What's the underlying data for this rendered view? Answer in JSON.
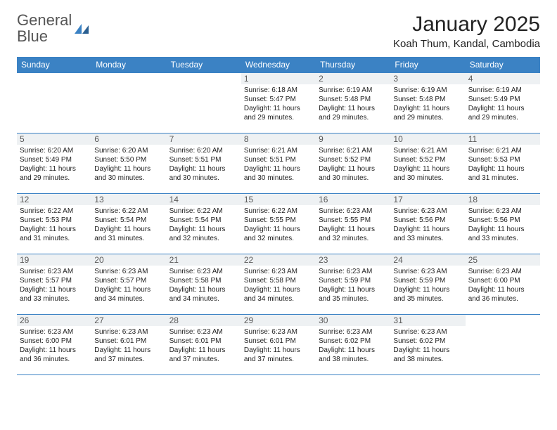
{
  "brand": {
    "part1": "General",
    "part2": "Blue"
  },
  "title": "January 2025",
  "location": "Koah Thum, Kandal, Cambodia",
  "header_bg": "#3b82c4",
  "header_fg": "#ffffff",
  "border_color": "#3b82c4",
  "daynum_bg": "#eef1f3",
  "day_headers": [
    "Sunday",
    "Monday",
    "Tuesday",
    "Wednesday",
    "Thursday",
    "Friday",
    "Saturday"
  ],
  "weeks": [
    [
      {
        "n": "",
        "sr": "",
        "ss": "",
        "d1": "",
        "d2": ""
      },
      {
        "n": "",
        "sr": "",
        "ss": "",
        "d1": "",
        "d2": ""
      },
      {
        "n": "",
        "sr": "",
        "ss": "",
        "d1": "",
        "d2": ""
      },
      {
        "n": "1",
        "sr": "Sunrise: 6:18 AM",
        "ss": "Sunset: 5:47 PM",
        "d1": "Daylight: 11 hours",
        "d2": "and 29 minutes."
      },
      {
        "n": "2",
        "sr": "Sunrise: 6:19 AM",
        "ss": "Sunset: 5:48 PM",
        "d1": "Daylight: 11 hours",
        "d2": "and 29 minutes."
      },
      {
        "n": "3",
        "sr": "Sunrise: 6:19 AM",
        "ss": "Sunset: 5:48 PM",
        "d1": "Daylight: 11 hours",
        "d2": "and 29 minutes."
      },
      {
        "n": "4",
        "sr": "Sunrise: 6:19 AM",
        "ss": "Sunset: 5:49 PM",
        "d1": "Daylight: 11 hours",
        "d2": "and 29 minutes."
      }
    ],
    [
      {
        "n": "5",
        "sr": "Sunrise: 6:20 AM",
        "ss": "Sunset: 5:49 PM",
        "d1": "Daylight: 11 hours",
        "d2": "and 29 minutes."
      },
      {
        "n": "6",
        "sr": "Sunrise: 6:20 AM",
        "ss": "Sunset: 5:50 PM",
        "d1": "Daylight: 11 hours",
        "d2": "and 30 minutes."
      },
      {
        "n": "7",
        "sr": "Sunrise: 6:20 AM",
        "ss": "Sunset: 5:51 PM",
        "d1": "Daylight: 11 hours",
        "d2": "and 30 minutes."
      },
      {
        "n": "8",
        "sr": "Sunrise: 6:21 AM",
        "ss": "Sunset: 5:51 PM",
        "d1": "Daylight: 11 hours",
        "d2": "and 30 minutes."
      },
      {
        "n": "9",
        "sr": "Sunrise: 6:21 AM",
        "ss": "Sunset: 5:52 PM",
        "d1": "Daylight: 11 hours",
        "d2": "and 30 minutes."
      },
      {
        "n": "10",
        "sr": "Sunrise: 6:21 AM",
        "ss": "Sunset: 5:52 PM",
        "d1": "Daylight: 11 hours",
        "d2": "and 30 minutes."
      },
      {
        "n": "11",
        "sr": "Sunrise: 6:21 AM",
        "ss": "Sunset: 5:53 PM",
        "d1": "Daylight: 11 hours",
        "d2": "and 31 minutes."
      }
    ],
    [
      {
        "n": "12",
        "sr": "Sunrise: 6:22 AM",
        "ss": "Sunset: 5:53 PM",
        "d1": "Daylight: 11 hours",
        "d2": "and 31 minutes."
      },
      {
        "n": "13",
        "sr": "Sunrise: 6:22 AM",
        "ss": "Sunset: 5:54 PM",
        "d1": "Daylight: 11 hours",
        "d2": "and 31 minutes."
      },
      {
        "n": "14",
        "sr": "Sunrise: 6:22 AM",
        "ss": "Sunset: 5:54 PM",
        "d1": "Daylight: 11 hours",
        "d2": "and 32 minutes."
      },
      {
        "n": "15",
        "sr": "Sunrise: 6:22 AM",
        "ss": "Sunset: 5:55 PM",
        "d1": "Daylight: 11 hours",
        "d2": "and 32 minutes."
      },
      {
        "n": "16",
        "sr": "Sunrise: 6:23 AM",
        "ss": "Sunset: 5:55 PM",
        "d1": "Daylight: 11 hours",
        "d2": "and 32 minutes."
      },
      {
        "n": "17",
        "sr": "Sunrise: 6:23 AM",
        "ss": "Sunset: 5:56 PM",
        "d1": "Daylight: 11 hours",
        "d2": "and 33 minutes."
      },
      {
        "n": "18",
        "sr": "Sunrise: 6:23 AM",
        "ss": "Sunset: 5:56 PM",
        "d1": "Daylight: 11 hours",
        "d2": "and 33 minutes."
      }
    ],
    [
      {
        "n": "19",
        "sr": "Sunrise: 6:23 AM",
        "ss": "Sunset: 5:57 PM",
        "d1": "Daylight: 11 hours",
        "d2": "and 33 minutes."
      },
      {
        "n": "20",
        "sr": "Sunrise: 6:23 AM",
        "ss": "Sunset: 5:57 PM",
        "d1": "Daylight: 11 hours",
        "d2": "and 34 minutes."
      },
      {
        "n": "21",
        "sr": "Sunrise: 6:23 AM",
        "ss": "Sunset: 5:58 PM",
        "d1": "Daylight: 11 hours",
        "d2": "and 34 minutes."
      },
      {
        "n": "22",
        "sr": "Sunrise: 6:23 AM",
        "ss": "Sunset: 5:58 PM",
        "d1": "Daylight: 11 hours",
        "d2": "and 34 minutes."
      },
      {
        "n": "23",
        "sr": "Sunrise: 6:23 AM",
        "ss": "Sunset: 5:59 PM",
        "d1": "Daylight: 11 hours",
        "d2": "and 35 minutes."
      },
      {
        "n": "24",
        "sr": "Sunrise: 6:23 AM",
        "ss": "Sunset: 5:59 PM",
        "d1": "Daylight: 11 hours",
        "d2": "and 35 minutes."
      },
      {
        "n": "25",
        "sr": "Sunrise: 6:23 AM",
        "ss": "Sunset: 6:00 PM",
        "d1": "Daylight: 11 hours",
        "d2": "and 36 minutes."
      }
    ],
    [
      {
        "n": "26",
        "sr": "Sunrise: 6:23 AM",
        "ss": "Sunset: 6:00 PM",
        "d1": "Daylight: 11 hours",
        "d2": "and 36 minutes."
      },
      {
        "n": "27",
        "sr": "Sunrise: 6:23 AM",
        "ss": "Sunset: 6:01 PM",
        "d1": "Daylight: 11 hours",
        "d2": "and 37 minutes."
      },
      {
        "n": "28",
        "sr": "Sunrise: 6:23 AM",
        "ss": "Sunset: 6:01 PM",
        "d1": "Daylight: 11 hours",
        "d2": "and 37 minutes."
      },
      {
        "n": "29",
        "sr": "Sunrise: 6:23 AM",
        "ss": "Sunset: 6:01 PM",
        "d1": "Daylight: 11 hours",
        "d2": "and 37 minutes."
      },
      {
        "n": "30",
        "sr": "Sunrise: 6:23 AM",
        "ss": "Sunset: 6:02 PM",
        "d1": "Daylight: 11 hours",
        "d2": "and 38 minutes."
      },
      {
        "n": "31",
        "sr": "Sunrise: 6:23 AM",
        "ss": "Sunset: 6:02 PM",
        "d1": "Daylight: 11 hours",
        "d2": "and 38 minutes."
      },
      {
        "n": "",
        "sr": "",
        "ss": "",
        "d1": "",
        "d2": ""
      }
    ]
  ]
}
